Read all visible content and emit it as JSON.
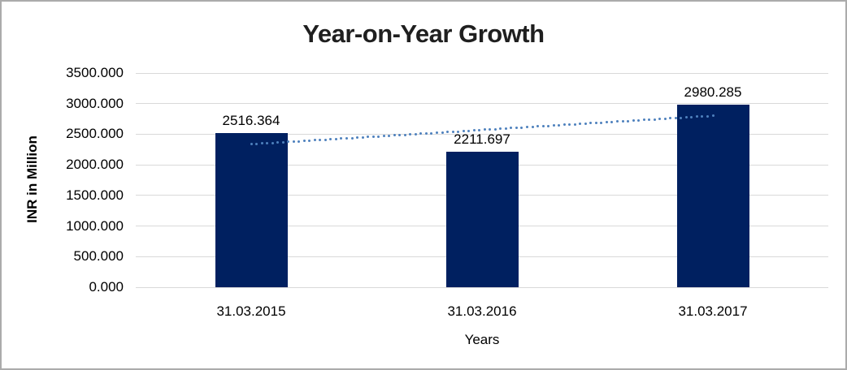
{
  "chart_data": {
    "type": "bar",
    "title": "Year-on-Year Growth",
    "xlabel": "Years",
    "ylabel": "INR in Million",
    "categories": [
      "31.03.2015",
      "31.03.2016",
      "31.03.2017"
    ],
    "values": [
      2516.364,
      2211.697,
      2980.285
    ],
    "data_labels": [
      "2516.364",
      "2211.697",
      "2980.285"
    ],
    "ylim": [
      0,
      3500
    ],
    "ytick_step": 500,
    "ytick_labels": [
      "0.000",
      "500.000",
      "1000.000",
      "1500.000",
      "2000.000",
      "2500.000",
      "3000.000",
      "3500.000"
    ],
    "grid": true,
    "legend": "none",
    "colors": {
      "bar": "#002060",
      "trendline": "#4e81bd",
      "gridline": "#d9d9d9",
      "title_text": "#1f1f1f",
      "axis_text": "#000000",
      "background": "#ffffff",
      "frame_border": "#ababab"
    },
    "trendline": {
      "type": "linear",
      "style": "dotted",
      "values": [
        2337.488,
        2569.449,
        2801.409
      ]
    }
  }
}
